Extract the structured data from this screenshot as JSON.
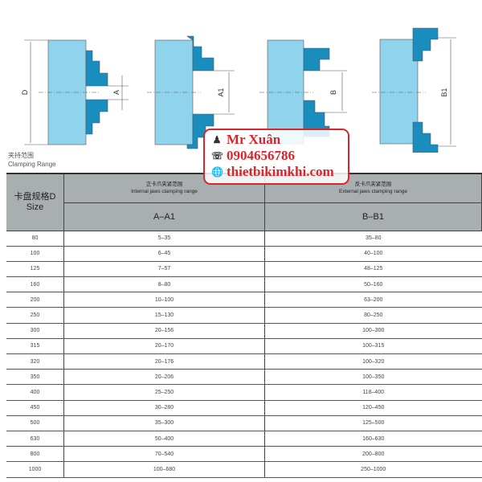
{
  "diagram_labels": {
    "d": "D",
    "a": "A",
    "a1": "A1",
    "b": "B",
    "b1": "B1"
  },
  "caption": {
    "zh": "夹持范围",
    "en": "Clamping Range"
  },
  "stamp": {
    "name": "Mr Xuân",
    "phone": "0904656786",
    "website": "thietbikimkhi.com",
    "icons": [
      "person-icon",
      "phone-icon",
      "globe-icon"
    ],
    "color": "#d8262c"
  },
  "colors": {
    "body": "#8fd3ec",
    "jaw": "#1a8dbf",
    "header": "#a9aeb1"
  },
  "table": {
    "size_header_zh": "卡盘规格D",
    "size_header_en": "Size",
    "internal_zh": "正卡爪夹紧范围",
    "internal_en": "Internal jaws clamping range",
    "internal_code": "A–A1",
    "external_zh": "反卡爪夹紧范围",
    "external_en": "External jaws clamping range",
    "external_code": "B–B1",
    "rows": [
      [
        "80",
        "5–35",
        "35–80"
      ],
      [
        "100",
        "6–45",
        "40–100"
      ],
      [
        "125",
        "7–57",
        "48–125"
      ],
      [
        "160",
        "8–80",
        "50–160"
      ],
      [
        "200",
        "10–100",
        "63–200"
      ],
      [
        "250",
        "15–130",
        "80–250"
      ],
      [
        "300",
        "20–156",
        "100–300"
      ],
      [
        "315",
        "20–170",
        "100–315"
      ],
      [
        "320",
        "20–176",
        "100–320"
      ],
      [
        "350",
        "20–206",
        "100–350"
      ],
      [
        "400",
        "25–250",
        "118–400"
      ],
      [
        "450",
        "30–280",
        "120–450"
      ],
      [
        "500",
        "35–300",
        "125–500"
      ],
      [
        "630",
        "50–400",
        "160–630"
      ],
      [
        "800",
        "70–540",
        "200–800"
      ],
      [
        "1000",
        "100–680",
        "250–1000"
      ]
    ]
  }
}
